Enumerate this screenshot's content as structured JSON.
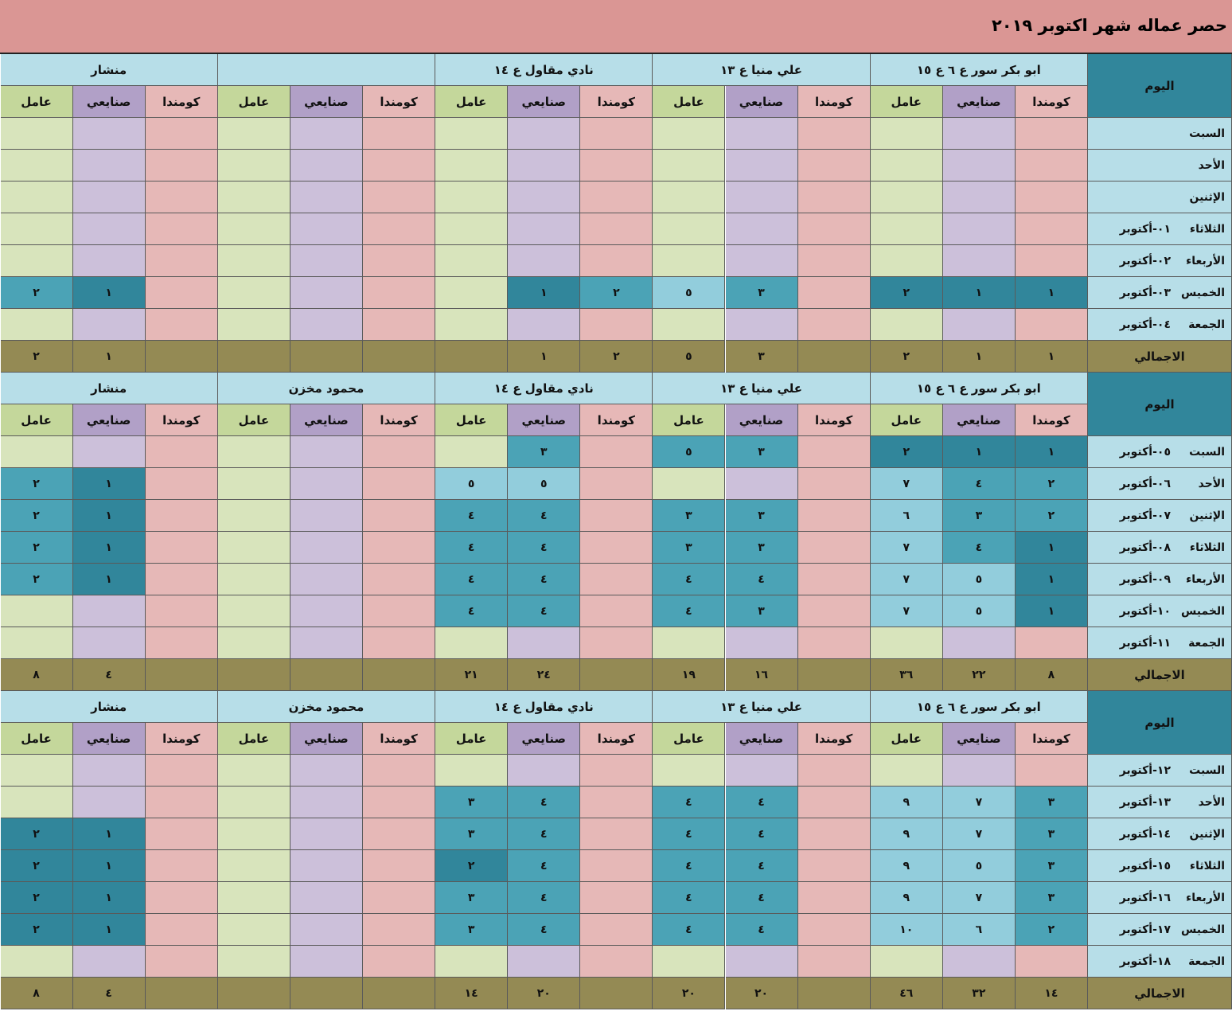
{
  "title": "حصر عماله شهر اكتوبر ٢٠١٩",
  "labels": {
    "day": "اليوم",
    "kommanda": "كومندا",
    "sanayei": "صنايعي",
    "amel": "عامل",
    "total": "الاجمالي"
  },
  "colors": {
    "title_bg": "#da9694",
    "group_header": "#b7dee8",
    "day_header": "#31869b",
    "kommanda": "#e6b8b7",
    "sanayei": "#ccc0da",
    "amel": "#d8e4bc",
    "total_row": "#948a54",
    "filled_dark": "#31869b",
    "filled_mid": "#4ba3b6",
    "filled_light": "#92cddc"
  },
  "blocks": [
    {
      "groups": [
        "ابو بكر سور ع ٦ ع ١٥",
        "علي منيا ع ١٣",
        "نادي مقاول ع ١٤",
        "",
        "منشار"
      ],
      "rows": [
        {
          "day": "السبت",
          "date": "",
          "values": [
            "",
            "",
            "",
            "",
            "",
            "",
            "",
            "",
            "",
            "",
            "",
            "",
            "",
            "",
            ""
          ],
          "shades": [
            "",
            "",
            "",
            "",
            "",
            "",
            "",
            "",
            "",
            "",
            "",
            "",
            "",
            "",
            ""
          ]
        },
        {
          "day": "الأحد",
          "date": "",
          "values": [
            "",
            "",
            "",
            "",
            "",
            "",
            "",
            "",
            "",
            "",
            "",
            "",
            "",
            "",
            ""
          ],
          "shades": [
            "",
            "",
            "",
            "",
            "",
            "",
            "",
            "",
            "",
            "",
            "",
            "",
            "",
            "",
            ""
          ]
        },
        {
          "day": "الإثنين",
          "date": "",
          "values": [
            "",
            "",
            "",
            "",
            "",
            "",
            "",
            "",
            "",
            "",
            "",
            "",
            "",
            "",
            ""
          ],
          "shades": [
            "",
            "",
            "",
            "",
            "",
            "",
            "",
            "",
            "",
            "",
            "",
            "",
            "",
            "",
            ""
          ]
        },
        {
          "day": "الثلاثاء",
          "date": "٠١-أكتوبر",
          "values": [
            "",
            "",
            "",
            "",
            "",
            "",
            "",
            "",
            "",
            "",
            "",
            "",
            "",
            "",
            ""
          ],
          "shades": [
            "",
            "",
            "",
            "",
            "",
            "",
            "",
            "",
            "",
            "",
            "",
            "",
            "",
            "",
            ""
          ]
        },
        {
          "day": "الأربعاء",
          "date": "٠٢-أكتوبر",
          "values": [
            "",
            "",
            "",
            "",
            "",
            "",
            "",
            "",
            "",
            "",
            "",
            "",
            "",
            "",
            ""
          ],
          "shades": [
            "",
            "",
            "",
            "",
            "",
            "",
            "",
            "",
            "",
            "",
            "",
            "",
            "",
            "",
            ""
          ]
        },
        {
          "day": "الخميس",
          "date": "٠٣-أكتوبر",
          "values": [
            "١",
            "١",
            "٢",
            "",
            "٣",
            "٥",
            "٢",
            "١",
            "",
            "",
            "",
            "",
            "",
            "١",
            "٢"
          ],
          "shades": [
            "d",
            "d",
            "d",
            "",
            "m",
            "l",
            "m",
            "d",
            "",
            "",
            "",
            "",
            "",
            "d",
            "m"
          ]
        },
        {
          "day": "الجمعة",
          "date": "٠٤-أكتوبر",
          "values": [
            "",
            "",
            "",
            "",
            "",
            "",
            "",
            "",
            "",
            "",
            "",
            "",
            "",
            "",
            ""
          ],
          "shades": [
            "",
            "",
            "",
            "",
            "",
            "",
            "",
            "",
            "",
            "",
            "",
            "",
            "",
            "",
            ""
          ]
        }
      ],
      "totals": [
        "١",
        "١",
        "٢",
        "",
        "٣",
        "٥",
        "٢",
        "١",
        "",
        "",
        "",
        "",
        "",
        "١",
        "٢"
      ]
    },
    {
      "groups": [
        "ابو بكر سور ع ٦ ع ١٥",
        "علي منيا ع ١٣",
        "نادي مقاول ع ١٤",
        "محمود مخزن",
        "منشار"
      ],
      "rows": [
        {
          "day": "السبت",
          "date": "٠٥-أكتوبر",
          "values": [
            "١",
            "١",
            "٢",
            "",
            "٣",
            "٥",
            "",
            "٣",
            "",
            "",
            "",
            "",
            "",
            "",
            ""
          ],
          "shades": [
            "d",
            "d",
            "d",
            "",
            "m",
            "m",
            "",
            "m",
            "",
            "",
            "",
            "",
            "",
            "",
            ""
          ]
        },
        {
          "day": "الأحد",
          "date": "٠٦-أكتوبر",
          "values": [
            "٢",
            "٤",
            "٧",
            "",
            "",
            "",
            "",
            "٥",
            "٥",
            "",
            "",
            "",
            "",
            "١",
            "٢"
          ],
          "shades": [
            "m",
            "m",
            "l",
            "",
            "",
            "",
            "",
            "l",
            "l",
            "",
            "",
            "",
            "",
            "d",
            "m"
          ]
        },
        {
          "day": "الإثنين",
          "date": "٠٧-أكتوبر",
          "values": [
            "٢",
            "٣",
            "٦",
            "",
            "٣",
            "٣",
            "",
            "٤",
            "٤",
            "",
            "",
            "",
            "",
            "١",
            "٢"
          ],
          "shades": [
            "m",
            "m",
            "l",
            "",
            "m",
            "m",
            "",
            "m",
            "m",
            "",
            "",
            "",
            "",
            "d",
            "m"
          ]
        },
        {
          "day": "الثلاثاء",
          "date": "٠٨-أكتوبر",
          "values": [
            "١",
            "٤",
            "٧",
            "",
            "٣",
            "٣",
            "",
            "٤",
            "٤",
            "",
            "",
            "",
            "",
            "١",
            "٢"
          ],
          "shades": [
            "d",
            "m",
            "l",
            "",
            "m",
            "m",
            "",
            "m",
            "m",
            "",
            "",
            "",
            "",
            "d",
            "m"
          ]
        },
        {
          "day": "الأربعاء",
          "date": "٠٩-أكتوبر",
          "values": [
            "١",
            "٥",
            "٧",
            "",
            "٤",
            "٤",
            "",
            "٤",
            "٤",
            "",
            "",
            "",
            "",
            "١",
            "٢"
          ],
          "shades": [
            "d",
            "l",
            "l",
            "",
            "m",
            "m",
            "",
            "m",
            "m",
            "",
            "",
            "",
            "",
            "d",
            "m"
          ]
        },
        {
          "day": "الخميس",
          "date": "١٠-أكتوبر",
          "values": [
            "١",
            "٥",
            "٧",
            "",
            "٣",
            "٤",
            "",
            "٤",
            "٤",
            "",
            "",
            "",
            "",
            "",
            ""
          ],
          "shades": [
            "d",
            "l",
            "l",
            "",
            "m",
            "m",
            "",
            "m",
            "m",
            "",
            "",
            "",
            "",
            "",
            ""
          ]
        },
        {
          "day": "الجمعة",
          "date": "١١-أكتوبر",
          "values": [
            "",
            "",
            "",
            "",
            "",
            "",
            "",
            "",
            "",
            "",
            "",
            "",
            "",
            "",
            ""
          ],
          "shades": [
            "",
            "",
            "",
            "",
            "",
            "",
            "",
            "",
            "",
            "",
            "",
            "",
            "",
            "",
            ""
          ]
        }
      ],
      "totals": [
        "٨",
        "٢٢",
        "٣٦",
        "",
        "١٦",
        "١٩",
        "",
        "٢٤",
        "٢١",
        "",
        "",
        "",
        "",
        "٤",
        "٨"
      ]
    },
    {
      "groups": [
        "ابو بكر سور ع ٦ ع ١٥",
        "علي منيا ع ١٣",
        "نادي مقاول ع ١٤",
        "محمود مخزن",
        "منشار"
      ],
      "rows": [
        {
          "day": "السبت",
          "date": "١٢-أكتوبر",
          "values": [
            "",
            "",
            "",
            "",
            "",
            "",
            "",
            "",
            "",
            "",
            "",
            "",
            "",
            "",
            ""
          ],
          "shades": [
            "",
            "",
            "",
            "",
            "",
            "",
            "",
            "",
            "",
            "",
            "",
            "",
            "",
            "",
            ""
          ]
        },
        {
          "day": "الأحد",
          "date": "١٣-أكتوبر",
          "values": [
            "٣",
            "٧",
            "٩",
            "",
            "٤",
            "٤",
            "",
            "٤",
            "٣",
            "",
            "",
            "",
            "",
            "",
            ""
          ],
          "shades": [
            "m",
            "l",
            "l",
            "",
            "m",
            "m",
            "",
            "m",
            "m",
            "",
            "",
            "",
            "",
            "",
            ""
          ]
        },
        {
          "day": "الإثنين",
          "date": "١٤-أكتوبر",
          "values": [
            "٣",
            "٧",
            "٩",
            "",
            "٤",
            "٤",
            "",
            "٤",
            "٣",
            "",
            "",
            "",
            "",
            "١",
            "٢"
          ],
          "shades": [
            "m",
            "l",
            "l",
            "",
            "m",
            "m",
            "",
            "m",
            "m",
            "",
            "",
            "",
            "",
            "d",
            "d"
          ]
        },
        {
          "day": "الثلاثاء",
          "date": "١٥-أكتوبر",
          "values": [
            "٣",
            "٥",
            "٩",
            "",
            "٤",
            "٤",
            "",
            "٤",
            "٢",
            "",
            "",
            "",
            "",
            "١",
            "٢"
          ],
          "shades": [
            "m",
            "l",
            "l",
            "",
            "m",
            "m",
            "",
            "m",
            "d",
            "",
            "",
            "",
            "",
            "d",
            "d"
          ]
        },
        {
          "day": "الأربعاء",
          "date": "١٦-أكتوبر",
          "values": [
            "٣",
            "٧",
            "٩",
            "",
            "٤",
            "٤",
            "",
            "٤",
            "٣",
            "",
            "",
            "",
            "",
            "١",
            "٢"
          ],
          "shades": [
            "m",
            "l",
            "l",
            "",
            "m",
            "m",
            "",
            "m",
            "m",
            "",
            "",
            "",
            "",
            "d",
            "d"
          ]
        },
        {
          "day": "الخميس",
          "date": "١٧-أكتوبر",
          "values": [
            "٢",
            "٦",
            "١٠",
            "",
            "٤",
            "٤",
            "",
            "٤",
            "٣",
            "",
            "",
            "",
            "",
            "١",
            "٢"
          ],
          "shades": [
            "m",
            "l",
            "l",
            "",
            "m",
            "m",
            "",
            "m",
            "m",
            "",
            "",
            "",
            "",
            "d",
            "d"
          ]
        },
        {
          "day": "الجمعة",
          "date": "١٨-أكتوبر",
          "values": [
            "",
            "",
            "",
            "",
            "",
            "",
            "",
            "",
            "",
            "",
            "",
            "",
            "",
            "",
            ""
          ],
          "shades": [
            "",
            "",
            "",
            "",
            "",
            "",
            "",
            "",
            "",
            "",
            "",
            "",
            "",
            "",
            ""
          ]
        }
      ],
      "totals": [
        "١٤",
        "٣٢",
        "٤٦",
        "",
        "٢٠",
        "٢٠",
        "",
        "٢٠",
        "١٤",
        "",
        "",
        "",
        "",
        "٤",
        "٨"
      ]
    }
  ]
}
